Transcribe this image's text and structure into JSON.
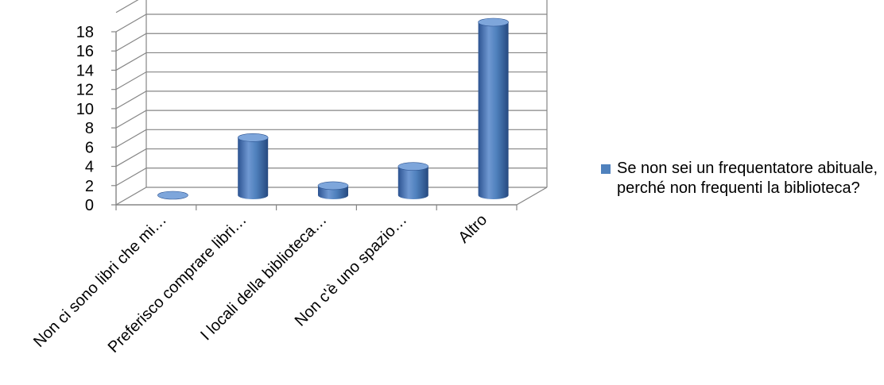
{
  "chart_data": {
    "type": "bar",
    "title": "",
    "xlabel": "",
    "ylabel": "",
    "categories": [
      "Non ci sono libri che mi…",
      "Preferisco comprare libri…",
      "I locali della biblioteca…",
      "Non c'è uno spazio…",
      "Altro"
    ],
    "series": [
      {
        "name": "Se non sei un frequentatore abituale, perché non frequenti la biblioteca?",
        "values": [
          0,
          6,
          1,
          3,
          18
        ]
      }
    ],
    "ylim": [
      0,
      18
    ],
    "yticks": [
      "0",
      "2",
      "4",
      "6",
      "8",
      "10",
      "12",
      "14",
      "16",
      "18"
    ],
    "grid": true,
    "legend_position": "right",
    "bar_shape": "3d-cylinder",
    "colors": {
      "bar": "#4F81BD",
      "bar_dark": "#2C5391",
      "bar_light": "#7EA6DB",
      "grid": "#868686",
      "axis": "#868686"
    }
  }
}
